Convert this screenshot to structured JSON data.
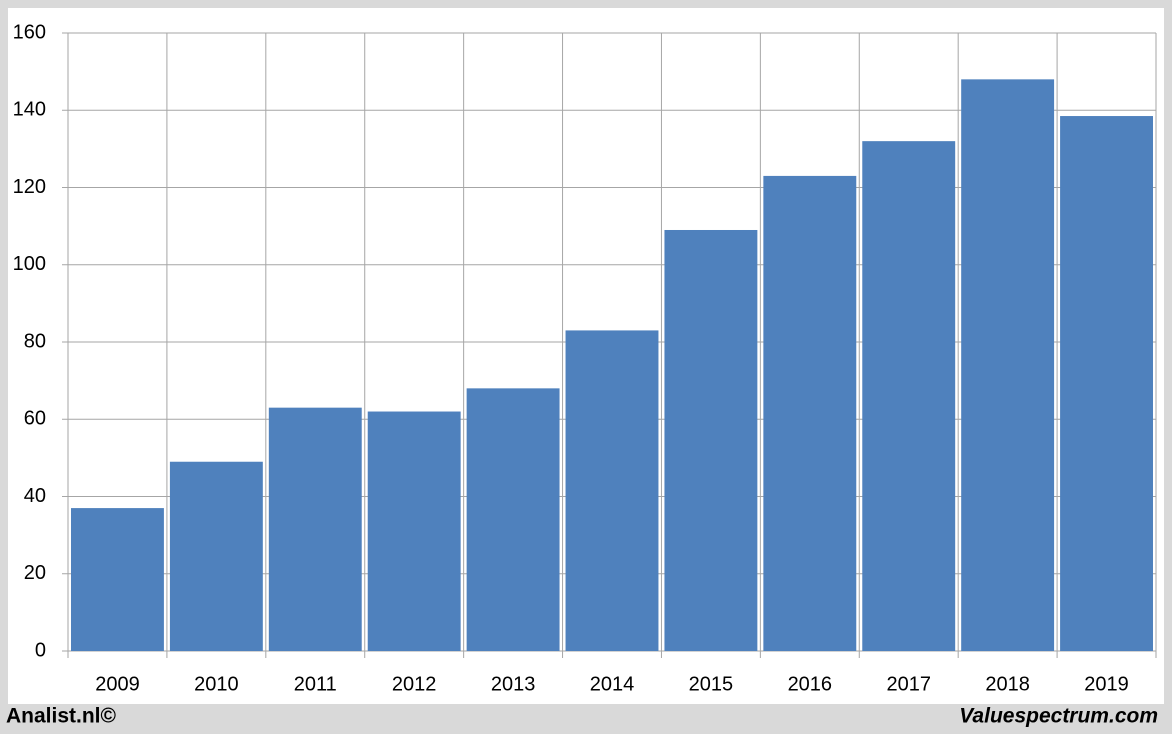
{
  "chart_data": {
    "type": "bar",
    "categories": [
      "2009",
      "2010",
      "2011",
      "2012",
      "2013",
      "2014",
      "2015",
      "2016",
      "2017",
      "2018",
      "2019"
    ],
    "values": [
      37,
      49,
      63,
      62,
      68,
      83,
      109,
      123,
      132,
      148,
      138.5
    ],
    "color": "#4f81bd",
    "ylim": [
      0,
      160
    ],
    "yticks": [
      0,
      20,
      40,
      60,
      80,
      100,
      120,
      140,
      160
    ],
    "grid": true,
    "footer_left": "Analist.nl©",
    "footer_right": "Valuespectrum.com"
  }
}
